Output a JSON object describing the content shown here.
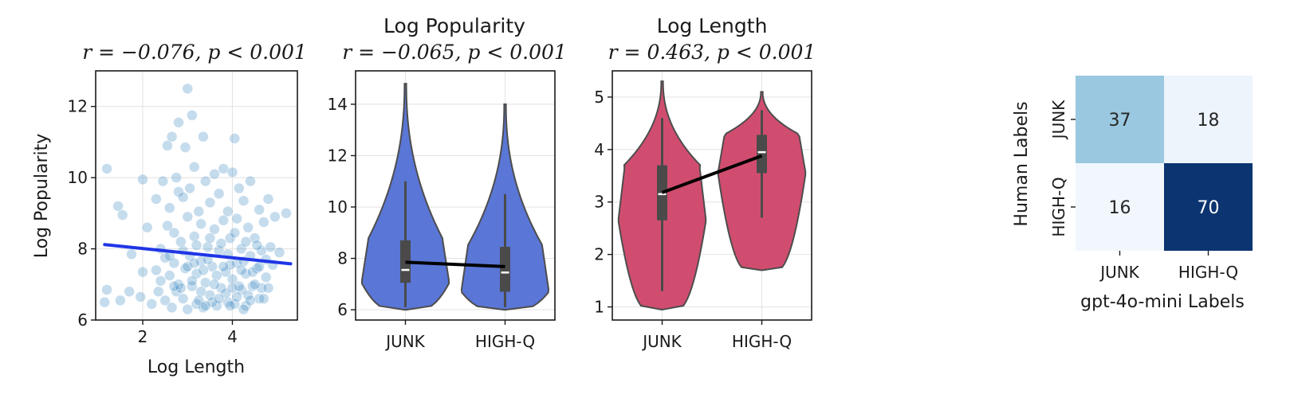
{
  "chart_data": [
    {
      "type": "scatter",
      "title": "r = −0.076, p < 0.001",
      "xlabel": "Log Length",
      "ylabel": "Log Popularity",
      "xlim": [
        0.95,
        5.45
      ],
      "ylim": [
        6.0,
        13.0
      ],
      "xticks": [
        2,
        4
      ],
      "yticks": [
        6,
        8,
        10,
        12
      ],
      "grid": true,
      "point_color": "#3f8ac2",
      "point_opacity": 0.3,
      "fit_line_color": "#1f35e6",
      "fit_line": [
        [
          1.15,
          8.12
        ],
        [
          5.3,
          7.58
        ]
      ],
      "points": [
        [
          1.2,
          10.25
        ],
        [
          1.2,
          6.85
        ],
        [
          1.15,
          6.5
        ],
        [
          1.45,
          9.2
        ],
        [
          1.5,
          6.55
        ],
        [
          1.55,
          8.95
        ],
        [
          1.7,
          6.8
        ],
        [
          1.75,
          7.85
        ],
        [
          1.95,
          6.65
        ],
        [
          2.0,
          9.95
        ],
        [
          2.0,
          7.35
        ],
        [
          2.1,
          8.6
        ],
        [
          2.2,
          6.45
        ],
        [
          2.3,
          7.4
        ],
        [
          2.3,
          9.4
        ],
        [
          2.35,
          6.8
        ],
        [
          2.4,
          8.0
        ],
        [
          2.4,
          7.1
        ],
        [
          2.45,
          9.9
        ],
        [
          2.5,
          7.75
        ],
        [
          2.5,
          6.55
        ],
        [
          2.55,
          8.65
        ],
        [
          2.55,
          10.9
        ],
        [
          2.6,
          7.25
        ],
        [
          2.6,
          9.15
        ],
        [
          2.65,
          11.15
        ],
        [
          2.65,
          6.35
        ],
        [
          2.7,
          8.45
        ],
        [
          2.7,
          7.6
        ],
        [
          2.75,
          10.0
        ],
        [
          2.75,
          6.8
        ],
        [
          2.8,
          9.6
        ],
        [
          2.8,
          7.0
        ],
        [
          2.8,
          11.55
        ],
        [
          2.85,
          8.2
        ],
        [
          2.9,
          6.6
        ],
        [
          2.9,
          9.45
        ],
        [
          2.95,
          10.85
        ],
        [
          2.95,
          7.45
        ],
        [
          3.0,
          8.9
        ],
        [
          3.0,
          6.3
        ],
        [
          3.0,
          12.5
        ],
        [
          3.05,
          7.8
        ],
        [
          3.05,
          9.7
        ],
        [
          3.1,
          11.75
        ],
        [
          3.1,
          6.95
        ],
        [
          3.15,
          8.35
        ],
        [
          3.15,
          10.3
        ],
        [
          3.2,
          7.3
        ],
        [
          3.2,
          6.45
        ],
        [
          3.25,
          9.05
        ],
        [
          3.3,
          8.7
        ],
        [
          3.3,
          7.65
        ],
        [
          3.35,
          11.15
        ],
        [
          3.35,
          6.35
        ],
        [
          3.4,
          9.9
        ],
        [
          3.4,
          7.05
        ],
        [
          3.45,
          8.05
        ],
        [
          3.5,
          6.7
        ],
        [
          3.5,
          9.3
        ],
        [
          3.55,
          7.5
        ],
        [
          3.6,
          8.55
        ],
        [
          3.6,
          10.1
        ],
        [
          3.65,
          6.4
        ],
        [
          3.7,
          7.95
        ],
        [
          3.7,
          9.55
        ],
        [
          3.75,
          6.9
        ],
        [
          3.8,
          8.8
        ],
        [
          3.8,
          10.25
        ],
        [
          3.85,
          7.35
        ],
        [
          3.9,
          6.5
        ],
        [
          3.9,
          9.05
        ],
        [
          3.95,
          8.3
        ],
        [
          4.0,
          7.15
        ],
        [
          4.0,
          10.15
        ],
        [
          4.05,
          11.1
        ],
        [
          4.05,
          6.45
        ],
        [
          4.1,
          8.85
        ],
        [
          4.1,
          7.6
        ],
        [
          4.15,
          9.7
        ],
        [
          4.2,
          6.85
        ],
        [
          4.2,
          8.0
        ],
        [
          4.25,
          9.35
        ],
        [
          4.3,
          7.3
        ],
        [
          4.3,
          6.4
        ],
        [
          4.35,
          8.6
        ],
        [
          4.4,
          7.8
        ],
        [
          4.4,
          9.9
        ],
        [
          4.45,
          6.95
        ],
        [
          4.5,
          8.3
        ],
        [
          4.55,
          7.45
        ],
        [
          4.6,
          9.1
        ],
        [
          4.6,
          6.6
        ],
        [
          4.65,
          7.95
        ],
        [
          4.7,
          8.75
        ],
        [
          4.75,
          7.2
        ],
        [
          4.8,
          9.4
        ],
        [
          4.85,
          8.05
        ],
        [
          4.9,
          7.55
        ],
        [
          4.95,
          8.9
        ],
        [
          5.05,
          7.9
        ],
        [
          5.2,
          9.0
        ],
        [
          3.1,
          7.1
        ],
        [
          3.2,
          8.1
        ],
        [
          3.3,
          6.8
        ],
        [
          3.45,
          7.7
        ],
        [
          3.55,
          6.5
        ],
        [
          3.65,
          7.25
        ],
        [
          3.75,
          8.15
        ],
        [
          3.85,
          6.75
        ],
        [
          3.95,
          7.55
        ],
        [
          4.05,
          8.45
        ],
        [
          4.15,
          6.95
        ],
        [
          4.25,
          7.65
        ],
        [
          4.35,
          6.7
        ],
        [
          4.45,
          7.35
        ],
        [
          4.55,
          8.1
        ],
        [
          4.65,
          6.9
        ],
        [
          4.75,
          7.7
        ],
        [
          3.0,
          7.5
        ],
        [
          2.9,
          7.95
        ],
        [
          2.85,
          6.9
        ],
        [
          3.35,
          7.4
        ],
        [
          3.5,
          8.3
        ],
        [
          3.7,
          6.6
        ],
        [
          3.9,
          7.85
        ],
        [
          4.1,
          6.65
        ],
        [
          4.3,
          8.2
        ],
        [
          4.5,
          7.0
        ],
        [
          4.7,
          6.6
        ],
        [
          2.7,
          6.95
        ],
        [
          2.6,
          7.8
        ],
        [
          3.25,
          6.55
        ],
        [
          3.6,
          7.0
        ],
        [
          3.8,
          7.5
        ],
        [
          4.0,
          6.9
        ],
        [
          4.2,
          7.4
        ],
        [
          4.4,
          6.55
        ],
        [
          4.6,
          7.5
        ],
        [
          4.8,
          6.9
        ],
        [
          3.15,
          7.6
        ],
        [
          3.4,
          6.4
        ],
        [
          3.95,
          6.4
        ],
        [
          4.25,
          6.3
        ]
      ]
    },
    {
      "type": "violin",
      "title_line1": "Log Popularity",
      "title_line2": "r = −0.065, p < 0.001",
      "categories": [
        "JUNK",
        "HIGH-Q"
      ],
      "ylim": [
        5.6,
        15.3
      ],
      "yticks": [
        6,
        8,
        10,
        12,
        14
      ],
      "color": "#5a76d6",
      "series": [
        {
          "name": "JUNK",
          "min": 6.0,
          "max": 14.8,
          "q1": 7.05,
          "median": 7.55,
          "q3": 8.7,
          "whisker_lo": 6.1,
          "whisker_hi": 11.0
        },
        {
          "name": "HIGH-Q",
          "min": 6.0,
          "max": 14.0,
          "q1": 6.7,
          "median": 7.45,
          "q3": 8.45,
          "whisker_lo": 6.1,
          "whisker_hi": 10.5
        }
      ],
      "means": [
        7.85,
        7.68
      ]
    },
    {
      "type": "violin",
      "title_line1": "Log Length",
      "title_line2": "r = 0.463, p < 0.001",
      "categories": [
        "JUNK",
        "HIGH-Q"
      ],
      "ylim": [
        0.75,
        5.5
      ],
      "yticks": [
        1,
        2,
        3,
        4,
        5
      ],
      "color": "#d14d70",
      "series": [
        {
          "name": "JUNK",
          "min": 0.95,
          "max": 5.3,
          "q1": 2.65,
          "median": 3.15,
          "q3": 3.7,
          "whisker_lo": 1.3,
          "whisker_hi": 4.6
        },
        {
          "name": "HIGH-Q",
          "min": 1.7,
          "max": 5.1,
          "q1": 3.55,
          "median": 3.95,
          "q3": 4.28,
          "whisker_lo": 2.7,
          "whisker_hi": 4.75
        }
      ],
      "means": [
        3.18,
        3.88
      ]
    },
    {
      "type": "heatmap",
      "xlabel": "gpt-4o-mini Labels",
      "ylabel": "Human Labels",
      "x_categories": [
        "JUNK",
        "HIGH-Q"
      ],
      "y_categories": [
        "JUNK",
        "HIGH-Q"
      ],
      "values": [
        [
          37,
          18
        ],
        [
          16,
          70
        ]
      ],
      "colormap": "Blues",
      "colors": [
        [
          "#9ac8e0",
          "#edf4fc"
        ],
        [
          "#f1f7fd",
          "#0b3470"
        ]
      ]
    }
  ]
}
